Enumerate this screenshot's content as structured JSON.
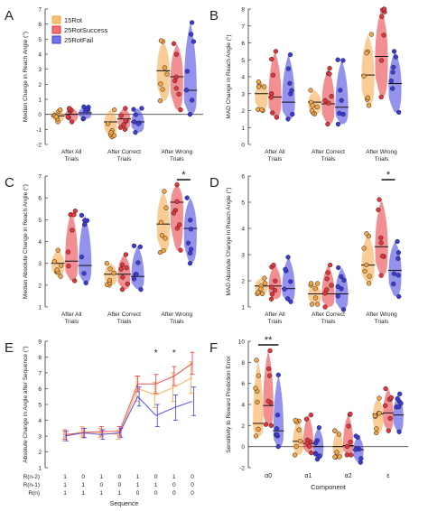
{
  "legend": [
    {
      "name": "15Rot",
      "color": "#f5a442"
    },
    {
      "name": "25RotSuccess",
      "color": "#e8333a"
    },
    {
      "name": "25RotFail",
      "color": "#3a3adf"
    }
  ],
  "chart_data": [
    {
      "panel": "A",
      "type": "violin",
      "ylabel": "Median Change in Reach Angle (°)",
      "ylim": [
        -2,
        7
      ],
      "yticks": [
        "-2",
        "-1",
        "0",
        "1",
        "2",
        "3",
        "4",
        "5",
        "6",
        "7"
      ],
      "categories": [
        "After All Trials",
        "After Correct Trials",
        "After Wrong Trials"
      ],
      "zero_line": true,
      "series": [
        {
          "name": "15Rot",
          "medians": [
            -0.1,
            -0.5,
            2.9
          ],
          "ranges": [
            [
              -0.5,
              0.3
            ],
            [
              -1.5,
              0.3
            ],
            [
              0.9,
              4.9
            ]
          ]
        },
        {
          "name": "25RotSuccess",
          "medians": [
            0.0,
            -0.3,
            2.5
          ],
          "ranges": [
            [
              -0.5,
              0.4
            ],
            [
              -1.0,
              0.4
            ],
            [
              0.3,
              4.7
            ]
          ]
        },
        {
          "name": "25RotFail",
          "medians": [
            0.1,
            -0.5,
            1.6
          ],
          "ranges": [
            [
              -0.3,
              0.5
            ],
            [
              -1.2,
              0.4
            ],
            [
              0.0,
              6.1
            ]
          ]
        }
      ]
    },
    {
      "panel": "B",
      "type": "violin",
      "ylabel": "MAD Change in Reach Angle (°)",
      "ylim": [
        0,
        8
      ],
      "yticks": [
        "0",
        "1",
        "2",
        "3",
        "4",
        "5",
        "6",
        "7",
        "8"
      ],
      "categories": [
        "After All Trials",
        "After Correct Trials",
        "After Wrong Trials"
      ],
      "series": [
        {
          "name": "15Rot",
          "medians": [
            3.0,
            2.5,
            4.1
          ],
          "ranges": [
            [
              2.0,
              3.7
            ],
            [
              1.8,
              3.2
            ],
            [
              2.3,
              6.5
            ]
          ]
        },
        {
          "name": "25RotSuccess",
          "medians": [
            2.8,
            2.4,
            5.2
          ],
          "ranges": [
            [
              1.6,
              5.5
            ],
            [
              1.2,
              4.5
            ],
            [
              2.8,
              8.0
            ]
          ]
        },
        {
          "name": "25RotFail",
          "medians": [
            2.5,
            2.2,
            3.6
          ],
          "ranges": [
            [
              1.5,
              5.3
            ],
            [
              1.2,
              5.0
            ],
            [
              1.9,
              5.5
            ]
          ]
        }
      ]
    },
    {
      "panel": "C",
      "type": "violin",
      "ylabel": "Median Absolute Change in Reach Angle (°)",
      "ylim": [
        1,
        7
      ],
      "yticks": [
        "1",
        "2",
        "3",
        "4",
        "5",
        "6",
        "7"
      ],
      "categories": [
        "After All Trials",
        "After Correct Trials",
        "After Wrong Trials"
      ],
      "significance": [
        {
          "category": 2,
          "between": [
            "25RotSuccess",
            "25RotFail"
          ],
          "label": "*"
        }
      ],
      "series": [
        {
          "name": "15Rot",
          "medians": [
            3.0,
            2.5,
            4.8
          ],
          "ranges": [
            [
              2.4,
              3.6
            ],
            [
              2.0,
              3.0
            ],
            [
              3.5,
              6.3
            ]
          ]
        },
        {
          "name": "25RotSuccess",
          "medians": [
            3.1,
            2.5,
            5.8
          ],
          "ranges": [
            [
              2.2,
              5.4
            ],
            [
              1.8,
              3.4
            ],
            [
              3.6,
              6.6
            ]
          ]
        },
        {
          "name": "25RotFail",
          "medians": [
            2.9,
            2.4,
            4.6
          ],
          "ranges": [
            [
              2.1,
              5.2
            ],
            [
              1.8,
              3.8
            ],
            [
              3.0,
              6.0
            ]
          ]
        }
      ]
    },
    {
      "panel": "D",
      "type": "violin",
      "ylabel": "MAD Absolute Change in Reach Angle (°)",
      "ylim": [
        1,
        6
      ],
      "yticks": [
        "1",
        "2",
        "3",
        "4",
        "5",
        "6"
      ],
      "categories": [
        "After All Trials",
        "After Correct Trials",
        "After Wrong Trials"
      ],
      "significance": [
        {
          "category": 2,
          "between": [
            "25RotSuccess",
            "25RotFail"
          ],
          "label": "*"
        }
      ],
      "series": [
        {
          "name": "15Rot",
          "medians": [
            1.8,
            1.5,
            2.6
          ],
          "ranges": [
            [
              1.5,
              2.1
            ],
            [
              1.1,
              1.9
            ],
            [
              1.9,
              3.8
            ]
          ]
        },
        {
          "name": "25RotSuccess",
          "medians": [
            1.8,
            1.5,
            3.3
          ],
          "ranges": [
            [
              1.3,
              2.6
            ],
            [
              1.0,
              2.6
            ],
            [
              2.2,
              5.1
            ]
          ]
        },
        {
          "name": "25RotFail",
          "medians": [
            1.7,
            1.5,
            2.4
          ],
          "ranges": [
            [
              1.2,
              2.9
            ],
            [
              0.9,
              2.5
            ],
            [
              1.4,
              3.5
            ]
          ]
        }
      ]
    },
    {
      "panel": "E",
      "type": "line",
      "ylabel": "Absolute Change in Angle after Sequence (°)",
      "ylim": [
        1,
        9
      ],
      "yticks": [
        "1",
        "2",
        "3",
        "4",
        "5",
        "6",
        "7",
        "8",
        "9"
      ],
      "xlabel": "Sequence",
      "row_labels": [
        "R(n-2)",
        "R(n-1)",
        "R(n)"
      ],
      "sequence_table": [
        [
          "1",
          "0",
          "1",
          "0",
          "1",
          "0",
          "1",
          "0"
        ],
        [
          "1",
          "1",
          "0",
          "0",
          "1",
          "1",
          "0",
          "0"
        ],
        [
          "1",
          "1",
          "1",
          "1",
          "0",
          "0",
          "0",
          "0"
        ]
      ],
      "significance": [
        {
          "x": 5,
          "label": "*"
        },
        {
          "x": 6,
          "label": "*"
        }
      ],
      "series": [
        {
          "name": "15Rot",
          "values": [
            3.0,
            3.3,
            3.2,
            3.1,
            6.0,
            5.6,
            6.1,
            6.7
          ],
          "errors": [
            0.3,
            0.3,
            0.3,
            0.3,
            0.8,
            0.8,
            0.9,
            1.0
          ]
        },
        {
          "name": "25RotSuccess",
          "values": [
            3.1,
            3.2,
            3.3,
            3.3,
            6.3,
            6.3,
            6.8,
            7.6
          ],
          "errors": [
            0.3,
            0.3,
            0.3,
            0.3,
            0.5,
            0.6,
            0.6,
            0.7
          ]
        },
        {
          "name": "25RotFail",
          "values": [
            3.0,
            3.2,
            3.1,
            3.2,
            5.5,
            4.3,
            4.8,
            5.2
          ],
          "errors": [
            0.3,
            0.3,
            0.3,
            0.3,
            0.6,
            0.7,
            0.8,
            0.9
          ]
        }
      ]
    },
    {
      "panel": "F",
      "type": "violin",
      "ylabel": "Sensitivity to Reward Prediction Error",
      "ylim": [
        -2,
        10
      ],
      "yticks": [
        "-2",
        "0",
        "2",
        "4",
        "6",
        "8",
        "10"
      ],
      "xlabel": "Component",
      "categories": [
        "α0",
        "α1",
        "α2",
        "ε"
      ],
      "zero_line": true,
      "significance": [
        {
          "category": 0,
          "between": [
            "15Rot",
            "25RotFail"
          ],
          "label": "**"
        }
      ],
      "series": [
        {
          "name": "15Rot",
          "medians": [
            2.2,
            0.5,
            0.0,
            3.1
          ],
          "ranges": [
            [
              1.0,
              8.2
            ],
            [
              -0.8,
              2.5
            ],
            [
              -1.0,
              1.5
            ],
            [
              1.3,
              4.6
            ]
          ]
        },
        {
          "name": "25RotSuccess",
          "medians": [
            3.9,
            0.3,
            0.1,
            3.2
          ],
          "ranges": [
            [
              2.0,
              9.1
            ],
            [
              -0.6,
              3.0
            ],
            [
              -0.8,
              3.1
            ],
            [
              1.5,
              5.5
            ]
          ]
        },
        {
          "name": "25RotFail",
          "medians": [
            1.5,
            0.0,
            -0.3,
            3.0
          ],
          "ranges": [
            [
              0.0,
              6.8
            ],
            [
              -1.2,
              1.8
            ],
            [
              -1.5,
              1.0
            ],
            [
              1.4,
              5.0
            ]
          ]
        }
      ]
    }
  ]
}
